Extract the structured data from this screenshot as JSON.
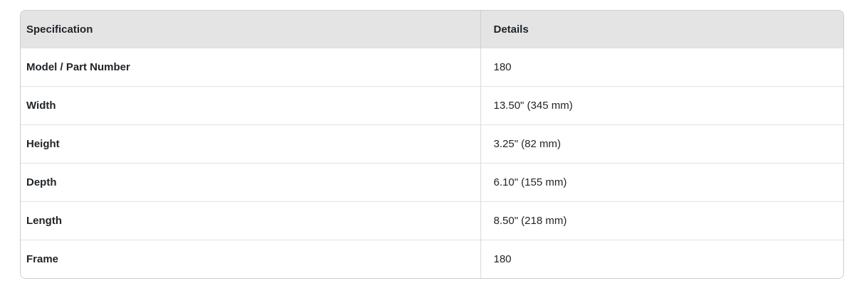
{
  "colors": {
    "page_background": "#ffffff",
    "header_background": "#e4e4e4",
    "outer_border": "#cccccc",
    "row_divider": "#e1e1e1",
    "column_divider": "#d9d9d9",
    "text": "#212529"
  },
  "table": {
    "header": {
      "spec": "Specification",
      "details": "Details"
    },
    "rows": [
      {
        "spec": "Model / Part Number",
        "details": "180"
      },
      {
        "spec": "Width",
        "details": "13.50\" (345 mm)"
      },
      {
        "spec": "Height",
        "details": "3.25\" (82 mm)"
      },
      {
        "spec": "Depth",
        "details": "6.10\" (155 mm)"
      },
      {
        "spec": "Length",
        "details": "8.50\" (218 mm)"
      },
      {
        "spec": "Frame",
        "details": "180"
      }
    ]
  },
  "chart_data": {
    "type": "table",
    "title": "",
    "columns": [
      "Specification",
      "Details"
    ],
    "rows": [
      [
        "Model / Part Number",
        "180"
      ],
      [
        "Width",
        "13.50\" (345 mm)"
      ],
      [
        "Height",
        "3.25\" (82 mm)"
      ],
      [
        "Depth",
        "6.10\" (155 mm)"
      ],
      [
        "Length",
        "8.50\" (218 mm)"
      ],
      [
        "Frame",
        "180"
      ]
    ]
  }
}
